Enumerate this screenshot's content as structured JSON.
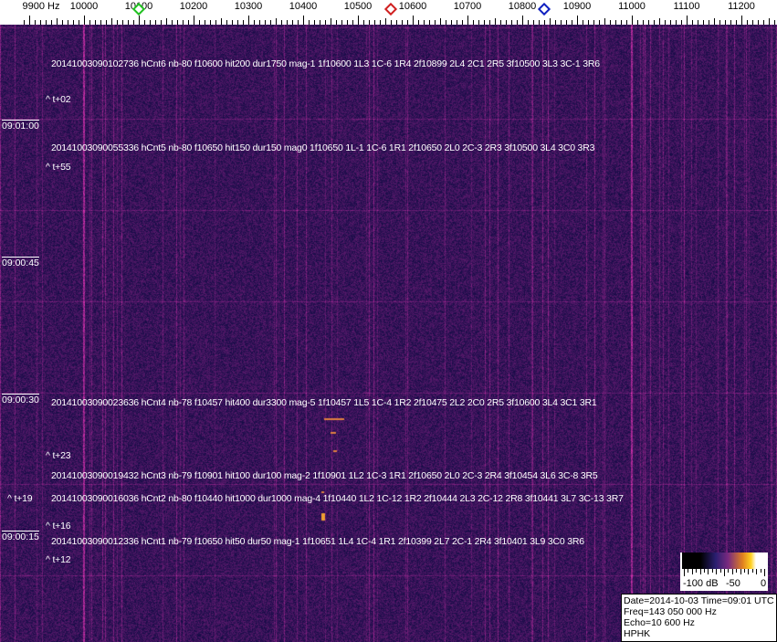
{
  "frequency_axis": {
    "unit_label": "9900 Hz",
    "labels": [
      "10000",
      "10100",
      "10200",
      "10300",
      "10400",
      "10500",
      "10600",
      "10700",
      "10800",
      "10900",
      "11000",
      "11100",
      "11200"
    ],
    "label_values": [
      10000,
      10100,
      10200,
      10300,
      10400,
      10500,
      10600,
      10700,
      10800,
      10900,
      11000,
      11100,
      11200
    ],
    "range_hz": [
      9880,
      11270
    ]
  },
  "markers": [
    {
      "name": "green-marker",
      "freq_hz": 10100,
      "color": "#20c020"
    },
    {
      "name": "red-marker",
      "freq_hz": 10560,
      "color": "#d02020"
    },
    {
      "name": "blue-marker",
      "freq_hz": 10840,
      "color": "#1020c0"
    }
  ],
  "time_labels": [
    "09:01:00",
    "09:00:45",
    "09:00:30",
    "09:00:15"
  ],
  "events": [
    {
      "text": "20141003090102736 hCnt6 nb-80 f10600 hit200 dur1750 mag-1 1f10600 1L3 1C-6 1R4 2f10899 2L4 2C1 2R5 3f10500 3L3 3C-1 3R6",
      "offset": "^ t+02"
    },
    {
      "text": "20141003090055336 hCnt5 nb-80 f10650 hit150 dur150 mag0 1f10650 1L-1 1C-6 1R1 2f10650 2L0 2C-3 2R3 3f10500 3L4 3C0 3R3",
      "offset": "^ t+55"
    },
    {
      "text": "20141003090023636 hCnt4 nb-78 f10457 hit400 dur3300 mag-5 1f10457 1L5 1C-4 1R2 2f10475 2L2 2C0 2R5 3f10600 3L4 3C1 3R1",
      "offset": "^ t+23"
    },
    {
      "text": "20141003090019432 hCnt3 nb-79 f10901 hit100 dur100 mag-2 1f10901 1L2 1C-3 1R1 2f10650 2L0 2C-3 2R4 3f10454 3L6 3C-8 3R5",
      "offset": "^ t+19"
    },
    {
      "text": "20141003090016036 hCnt2 nb-80 f10440 hit1000 dur1000 mag-4 1f10440 1L2 1C-12 1R2 2f10444 2L3 2C-12 2R8 3f10441 3L7 3C-13 3R7",
      "offset": "^ t+16"
    },
    {
      "text": "20141003090012336 hCnt1 nb-79 f10650 hit50 dur50 mag-1 1f10651 1L4 1C-4 1R1 2f10399 2L7 2C-1 2R4 3f10401 3L9 3C0 3R6",
      "offset": "^ t+12"
    }
  ],
  "colorbar": {
    "labels": [
      "-100 dB",
      "-50",
      "0"
    ],
    "range_db": [
      -100,
      0
    ]
  },
  "info": {
    "line1": "Date=2014-10-03 Time=09:01 UTC",
    "line2": "Freq=143 050 000 Hz",
    "line3": "Echo=10 600 Hz",
    "line4": "HPHK"
  },
  "colors": {
    "background": "#241a66",
    "carrier_line": "#b03060",
    "text": "#ffffff"
  }
}
